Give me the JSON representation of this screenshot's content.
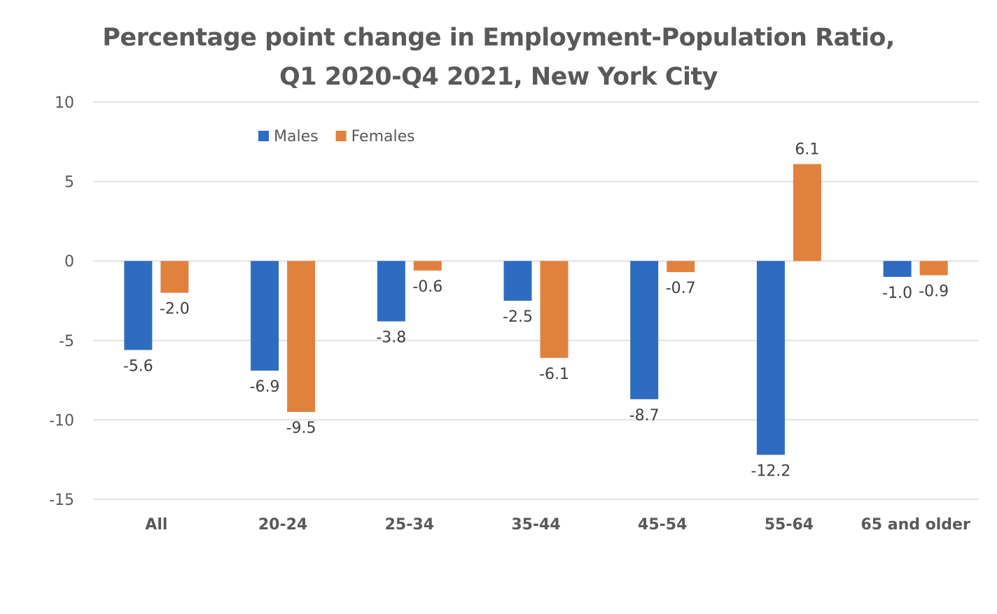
{
  "chart_data": {
    "type": "bar",
    "title": "Percentage point change in Employment-Population Ratio,",
    "subtitle": "Q1 2020-Q4 2021, New York City",
    "categories": [
      "All",
      "20-24",
      "25-34",
      "35-44",
      "45-54",
      "55-64",
      "65 and older"
    ],
    "series": [
      {
        "name": "Males",
        "color": "#2E6CC0",
        "values": [
          -5.6,
          -6.9,
          -3.8,
          -2.5,
          -8.7,
          -12.2,
          -1.0
        ],
        "labels": [
          "-5.6",
          "-6.9",
          "-3.8",
          "-2.5",
          "-8.7",
          "-12.2",
          "-1.0"
        ]
      },
      {
        "name": "Females",
        "color": "#E0823E",
        "values": [
          -2.0,
          -9.5,
          -0.6,
          -6.1,
          -0.7,
          6.1,
          -0.9
        ],
        "labels": [
          "-2.0",
          "-9.5",
          "-0.6",
          "-6.1",
          "-0.7",
          "6.1",
          "-0.9"
        ]
      }
    ],
    "ylim": [
      -15,
      10
    ],
    "yticks": [
      10,
      5,
      0,
      -5,
      -10,
      -15
    ],
    "ytick_labels": [
      "10",
      "5",
      "0",
      "-5",
      "-10",
      "-15"
    ],
    "xlabel": "",
    "ylabel": "",
    "grid": true,
    "legend_position": "top-left"
  }
}
